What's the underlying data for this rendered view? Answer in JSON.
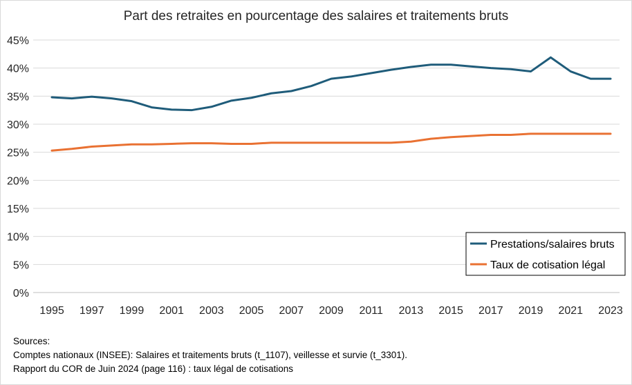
{
  "chart_data": {
    "type": "line",
    "title": "Part des retraites en pourcentage des salaires et traitements bruts",
    "x": [
      1995,
      1996,
      1997,
      1998,
      1999,
      2000,
      2001,
      2002,
      2003,
      2004,
      2005,
      2006,
      2007,
      2008,
      2009,
      2010,
      2011,
      2012,
      2013,
      2014,
      2015,
      2016,
      2017,
      2018,
      2019,
      2020,
      2021,
      2022,
      2023
    ],
    "x_tick_labels": [
      "1995",
      "1997",
      "1999",
      "2001",
      "2003",
      "2005",
      "2007",
      "2009",
      "2011",
      "2013",
      "2015",
      "2017",
      "2019",
      "2021",
      "2023"
    ],
    "y_tick_labels": [
      "0%",
      "5%",
      "10%",
      "15%",
      "20%",
      "25%",
      "30%",
      "35%",
      "40%",
      "45%"
    ],
    "ylim": [
      0,
      45
    ],
    "grid": true,
    "legend_position": "bottom-right",
    "series": [
      {
        "name": "Prestations/salaires bruts",
        "color": "#1f5c7a",
        "values": [
          34.8,
          34.6,
          34.9,
          34.6,
          34.1,
          33.0,
          32.6,
          32.5,
          33.1,
          34.2,
          34.7,
          35.5,
          35.9,
          36.8,
          38.1,
          38.5,
          39.1,
          39.7,
          40.2,
          40.6,
          40.6,
          40.3,
          40.0,
          39.8,
          39.4,
          41.9,
          39.4,
          38.1,
          38.1
        ]
      },
      {
        "name": "Taux de cotisation légal",
        "color": "#e97132",
        "values": [
          25.3,
          25.6,
          26.0,
          26.2,
          26.4,
          26.4,
          26.5,
          26.6,
          26.6,
          26.5,
          26.5,
          26.7,
          26.7,
          26.7,
          26.7,
          26.7,
          26.7,
          26.7,
          26.9,
          27.4,
          27.7,
          27.9,
          28.1,
          28.1,
          28.3,
          28.3,
          28.3,
          28.3,
          28.3
        ]
      }
    ]
  },
  "sources": {
    "heading": "Sources:",
    "line1": "Comptes nationaux (INSEE): Salaires et traitements bruts (t_1107), veillesse et survie (t_3301).",
    "line2": "Rapport du COR de Juin 2024 (page 116) : taux légal de cotisations"
  }
}
